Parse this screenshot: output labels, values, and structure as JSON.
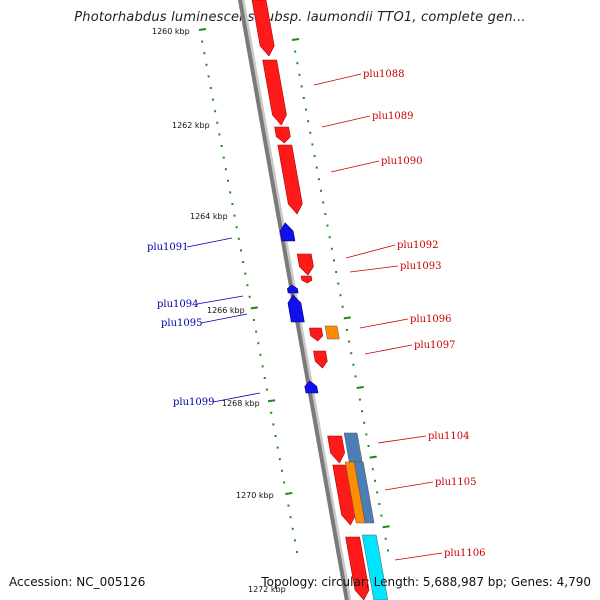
{
  "title": "Photorhabdus luminescens subsp. laumondii TTO1, complete gen...",
  "footer": {
    "accession": "Accession: NC_005126",
    "summary": "Topology: circular; Length: 5,688,987 bp; Genes: 4,790"
  },
  "colors": {
    "forward_gene": "#ff1a1a",
    "reverse_gene": "#1010ee",
    "forward_label": "#cc0000",
    "reverse_label": "#0000aa",
    "backbone": "#7a7a7a",
    "tick": "#1a8c1a",
    "orange_feature": "#ff8c00",
    "steelblue_feature": "#4a7fb5",
    "cyan_feature": "#00e5ff"
  },
  "kbp_labels": [
    "1260 kbp",
    "1262 kbp",
    "1264 kbp",
    "1266 kbp",
    "1268 kbp",
    "1270 kbp",
    "1272 kbp"
  ],
  "forward_gene_labels": [
    "plu1088",
    "plu1089",
    "plu1090",
    "plu1092",
    "plu1093",
    "plu1096",
    "plu1097",
    "plu1104",
    "plu1105",
    "plu1106"
  ],
  "reverse_gene_labels": [
    "plu1091",
    "plu1094",
    "plu1095",
    "plu1099"
  ]
}
